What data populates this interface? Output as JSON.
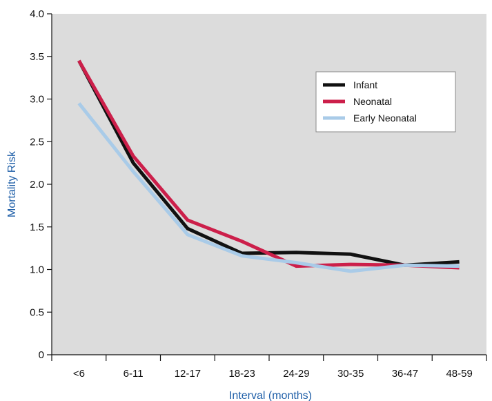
{
  "chart_data": {
    "type": "line",
    "xlabel": "Interval (months)",
    "ylabel": "Mortality Risk",
    "categories": [
      "<6",
      "6-11",
      "12-17",
      "18-23",
      "24-29",
      "30-35",
      "36-47",
      "48-59"
    ],
    "ylim": [
      0,
      4.0
    ],
    "yticks": [
      0,
      0.5,
      1.0,
      1.5,
      2.0,
      2.5,
      3.0,
      3.5,
      4.0
    ],
    "ytick_labels": [
      "0",
      "0.5",
      "1.0",
      "1.5",
      "2.0",
      "2.5",
      "3.0",
      "3.5",
      "4.0"
    ],
    "grid": false,
    "plot_background": "#dcdcdc",
    "legend_position": "top-right",
    "series": [
      {
        "name": "Infant",
        "color": "#111111",
        "values": [
          3.45,
          2.25,
          1.48,
          1.19,
          1.2,
          1.18,
          1.05,
          1.09
        ]
      },
      {
        "name": "Neonatal",
        "color": "#cc1f4a",
        "values": [
          3.45,
          2.33,
          1.58,
          1.33,
          1.04,
          1.06,
          1.05,
          1.02
        ]
      },
      {
        "name": "Early Neonatal",
        "color": "#a9cbe8",
        "values": [
          2.95,
          2.15,
          1.41,
          1.16,
          1.08,
          0.98,
          1.05,
          1.04
        ]
      }
    ]
  }
}
